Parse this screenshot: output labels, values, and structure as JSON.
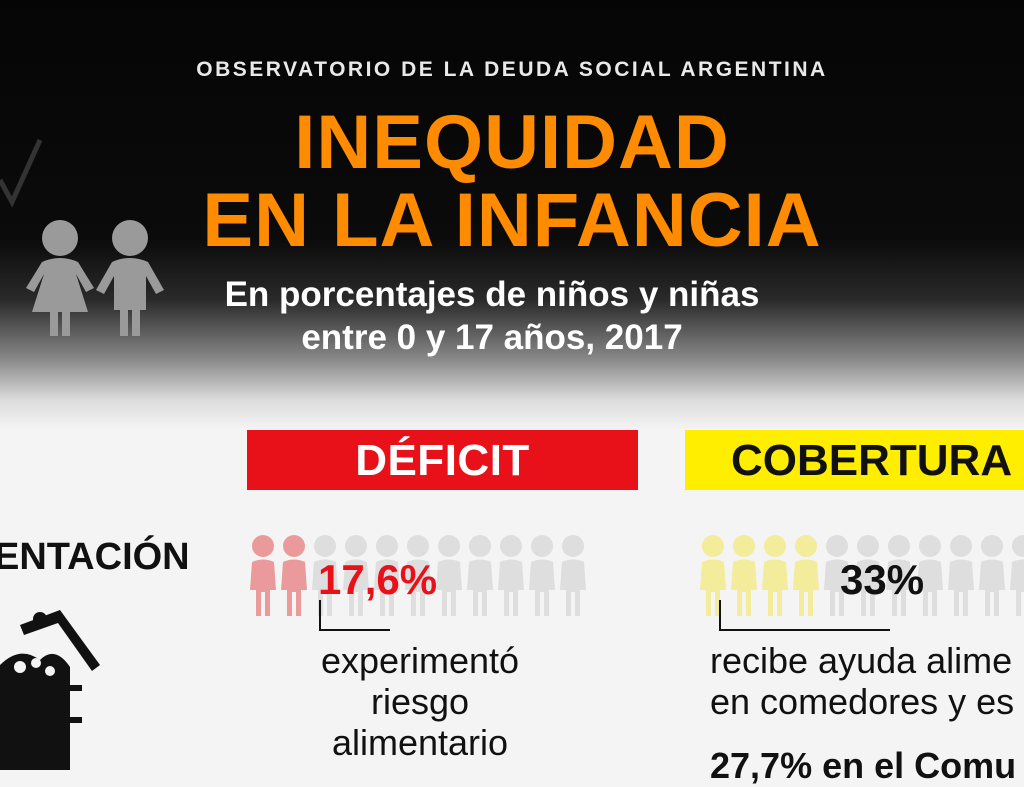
{
  "header": {
    "organization": "OBSERVATORIO DE LA DEUDA SOCIAL ARGENTINA",
    "title_line1": "INEQUIDAD",
    "title_line2": "EN LA INFANCIA",
    "subtitle_line1": "En porcentajes de niños y niñas",
    "subtitle_line2": "entre 0 y 17 años, 2017"
  },
  "columns": {
    "deficit": {
      "label": "DÉFICIT",
      "color": "#e8111a"
    },
    "cobertura": {
      "label": "COBERTURA",
      "color": "#ffee00"
    }
  },
  "section": {
    "label": "ENTACIÓN",
    "deficit_value": "17,6%",
    "deficit_desc_1": "experimentó",
    "deficit_desc_2": "riesgo",
    "deficit_desc_3": "alimentario",
    "cobertura_value": "33%",
    "cobertura_desc_1": "recibe ayuda alime",
    "cobertura_desc_2": "en comedores y es",
    "cobertura_extra": "27,7% en el Comu"
  },
  "icons": {
    "kids": "children-icon",
    "pot": "cooking-pot-icon",
    "person": "child-figure-icon"
  },
  "colors": {
    "accent_orange": "#ff8c00",
    "deficit_red": "#e8111a",
    "cobertura_yellow": "#ffee00"
  }
}
